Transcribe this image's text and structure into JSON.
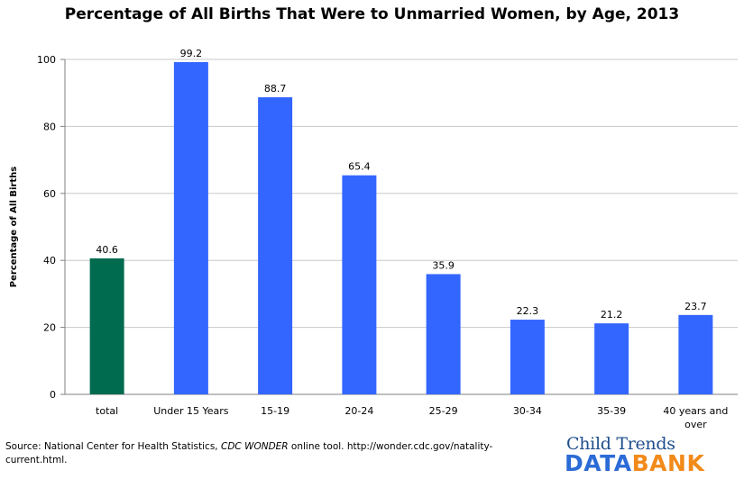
{
  "chart_data": {
    "type": "bar",
    "title": "Percentage of All Births That Were to Unmarried Women, by Age, 2013",
    "ylabel": "Percentage of All Births",
    "xlabel": "",
    "ylim": [
      0,
      100
    ],
    "yticks": [
      0,
      20,
      40,
      60,
      80,
      100
    ],
    "grid": true,
    "categories": [
      "total",
      "Under 15 Years",
      "15-19",
      "20-24",
      "25-29",
      "30-34",
      "35-39",
      "40 years and over"
    ],
    "values": [
      40.6,
      99.2,
      88.7,
      65.4,
      35.9,
      22.3,
      21.2,
      23.7
    ],
    "data_labels": [
      "40.6",
      "99.2",
      "88.7",
      "65.4",
      "35.9",
      "22.3",
      "21.2",
      "23.7"
    ],
    "colors": [
      "#006b4f",
      "#3366ff",
      "#3366ff",
      "#3366ff",
      "#3366ff",
      "#3366ff",
      "#3366ff",
      "#3366ff"
    ]
  },
  "source": {
    "prefix": "Source: National Center for Health Statistics, ",
    "emphasis": "CDC WONDER",
    "suffix": " online tool.  http://wonder.cdc.gov/natality-current.html."
  },
  "logo": {
    "line1": "Child Trends",
    "data": "DATA",
    "bank": "BANK"
  }
}
